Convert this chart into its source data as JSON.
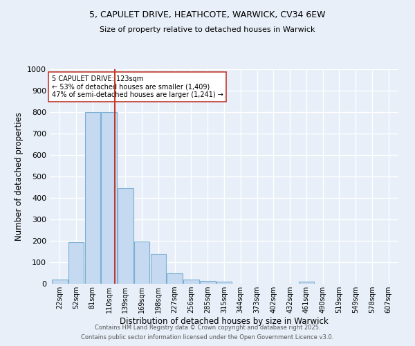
{
  "title1": "5, CAPULET DRIVE, HEATHCOTE, WARWICK, CV34 6EW",
  "title2": "Size of property relative to detached houses in Warwick",
  "xlabel": "Distribution of detached houses by size in Warwick",
  "ylabel": "Number of detached properties",
  "bin_labels": [
    "22sqm",
    "52sqm",
    "81sqm",
    "110sqm",
    "139sqm",
    "169sqm",
    "198sqm",
    "227sqm",
    "256sqm",
    "285sqm",
    "315sqm",
    "344sqm",
    "373sqm",
    "402sqm",
    "432sqm",
    "461sqm",
    "490sqm",
    "519sqm",
    "549sqm",
    "578sqm",
    "607sqm"
  ],
  "bar_values": [
    20,
    195,
    800,
    800,
    445,
    197,
    140,
    50,
    18,
    12,
    9,
    0,
    0,
    0,
    0,
    11,
    0,
    0,
    0,
    0,
    0
  ],
  "bar_color": "#C5D9F0",
  "bar_edge_color": "#7BAFD4",
  "vline_x": 3.35,
  "vline_color": "#C0392B",
  "annotation_text": "5 CAPULET DRIVE: 123sqm\n← 53% of detached houses are smaller (1,409)\n47% of semi-detached houses are larger (1,241) →",
  "annotation_box_color": "#FFFFFF",
  "annotation_box_edge": "#C0392B",
  "ylim": [
    0,
    1000
  ],
  "yticks": [
    0,
    100,
    200,
    300,
    400,
    500,
    600,
    700,
    800,
    900,
    1000
  ],
  "bg_color": "#E8EFF8",
  "fig_color": "#E8EFF8",
  "grid_color": "#FFFFFF",
  "footer1": "Contains HM Land Registry data © Crown copyright and database right 2025.",
  "footer2": "Contains public sector information licensed under the Open Government Licence v3.0."
}
